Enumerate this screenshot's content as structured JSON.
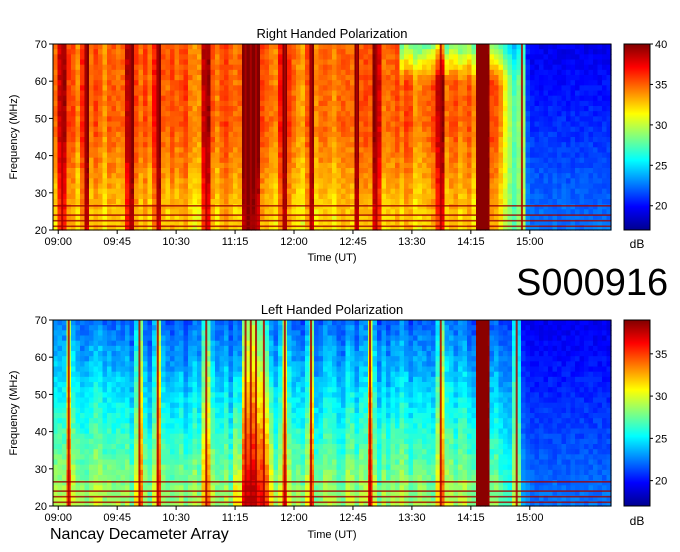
{
  "station_id": "S000916",
  "footer": "Nancay Decameter Array",
  "chart_data": [
    {
      "type": "heatmap",
      "title": "Right Handed Polarization",
      "xlabel": "Time (UT)",
      "ylabel": "Frequency (MHz)",
      "x_ticks": [
        "09:00",
        "09:45",
        "10:30",
        "11:15",
        "12:00",
        "12:45",
        "13:30",
        "14:15",
        "15:00"
      ],
      "y_ticks": [
        20,
        30,
        40,
        50,
        60,
        70
      ],
      "ylim": [
        20,
        70
      ],
      "xlim": [
        "08:56",
        "16:02"
      ],
      "colorbar": {
        "label": "dB",
        "ticks": [
          20,
          25,
          30,
          35,
          40
        ],
        "range": [
          17,
          40
        ]
      },
      "features": {
        "base_level": "high",
        "spike_times": [
          "09:03",
          "09:21",
          "09:55",
          "10:16",
          "10:53",
          "11:23",
          "11:27",
          "11:31",
          "11:53",
          "12:13",
          "12:48",
          "13:03",
          "13:52",
          "14:22",
          "14:25",
          "14:54"
        ],
        "strong_burst": {
          "start": "14:20",
          "end": "14:28"
        },
        "quiet_after": "14:35"
      }
    },
    {
      "type": "heatmap",
      "title": "Left Handed Polarization",
      "xlabel": "Time (UT)",
      "ylabel": "Frequency (MHz)",
      "x_ticks": [
        "09:00",
        "09:45",
        "10:30",
        "11:15",
        "12:00",
        "12:45",
        "13:30",
        "14:15",
        "15:00"
      ],
      "y_ticks": [
        20,
        30,
        40,
        50,
        60,
        70
      ],
      "ylim": [
        20,
        70
      ],
      "xlim": [
        "08:56",
        "16:02"
      ],
      "colorbar": {
        "label": "dB",
        "ticks": [
          20,
          25,
          30,
          35
        ],
        "range": [
          17,
          39
        ]
      },
      "features": {
        "base_level": "low",
        "spike_times": [
          "09:08",
          "10:02",
          "10:16",
          "10:53",
          "11:23",
          "11:27",
          "11:31",
          "11:37",
          "11:53",
          "12:13",
          "12:58",
          "13:52",
          "14:22",
          "14:25",
          "14:50"
        ],
        "strong_burst": {
          "start": "14:20",
          "end": "14:28"
        },
        "quiet_after": "14:35"
      }
    }
  ]
}
